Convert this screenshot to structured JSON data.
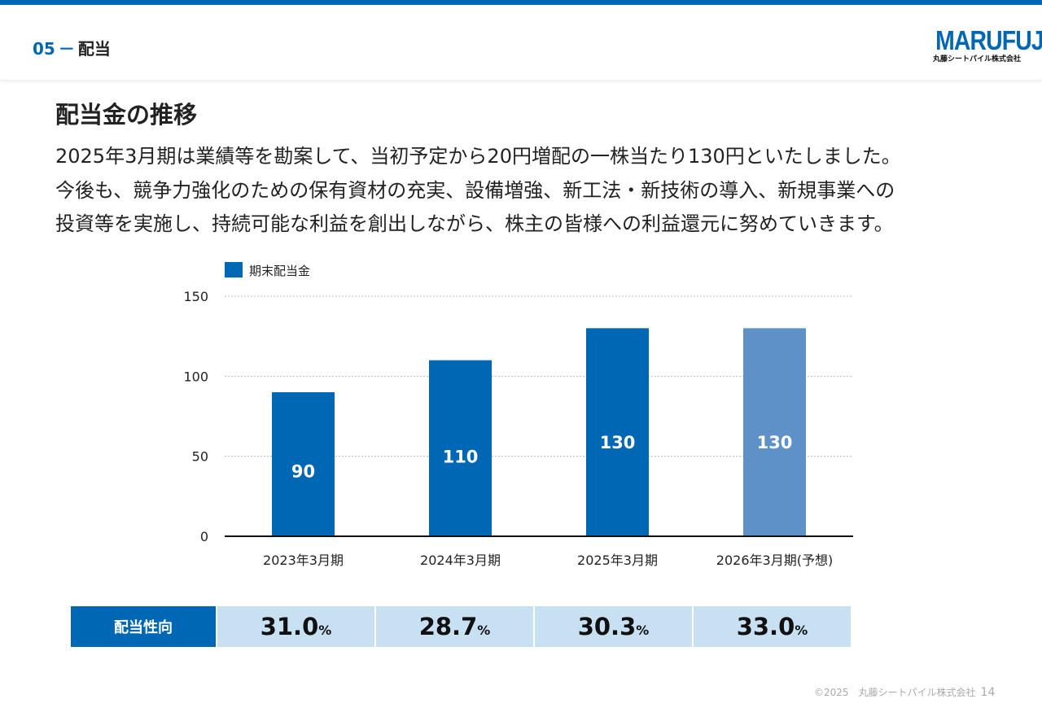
{
  "header": {
    "section_num": "05",
    "section_dash": "－",
    "section_title": "配当",
    "logo_text": "MARUFUJI",
    "logo_subtext": "丸藤シートパイル株式会社"
  },
  "page": {
    "heading": "配当金の推移",
    "lead_lines": [
      "2025年3月期は業績等を勘案して、当初予定から20円増配の一株当たり130円といたしました。",
      "今後も、競争力強化のための保有資材の充実、設備増強、新工法・新技術の導入、新規事業への",
      "投資等を実施し、持続可能な利益を創出しながら、株主の皆様への利益還元に努めていきます。"
    ]
  },
  "chart_data": {
    "type": "bar",
    "categories": [
      "2023年3月期",
      "2024年3月期",
      "2025年3月期",
      "2026年3月期(予想)"
    ],
    "series": [
      {
        "name": "期末配当金",
        "values": [
          90,
          110,
          130,
          130
        ]
      }
    ],
    "forecast_index": 3,
    "ylim": [
      0,
      150
    ],
    "yticks": [
      "0",
      "50",
      "100",
      "150"
    ],
    "grid": true,
    "legend_position": "top-left",
    "colors": {
      "actual": "#0067b5",
      "forecast": "#5f91c9"
    }
  },
  "payout_table": {
    "label": "配当性向",
    "values": [
      "31.0",
      "28.7",
      "30.3",
      "33.0"
    ],
    "unit": "%"
  },
  "footer": {
    "copyright": "©2025　丸藤シートパイル株式会社",
    "page_number": "14"
  }
}
